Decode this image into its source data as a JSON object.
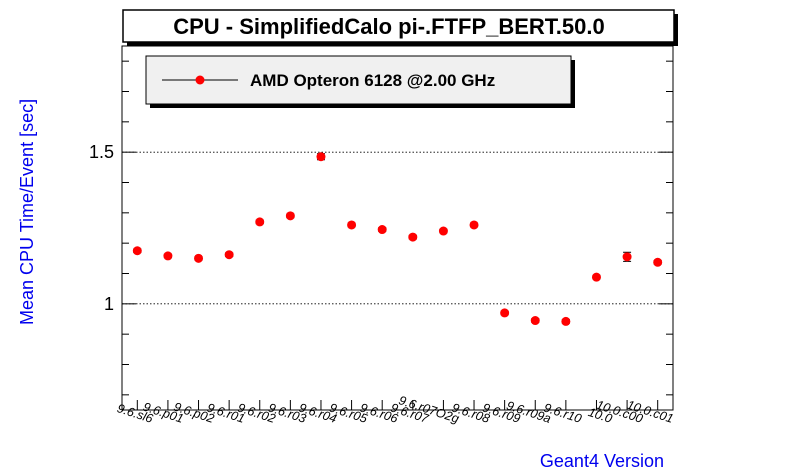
{
  "chart_data": {
    "type": "scatter",
    "title": "CPU - SimplifiedCalo pi-.FTFP_BERT.50.0",
    "xlabel": "Geant4 Version",
    "ylabel": "Mean CPU Time/Event [sec]",
    "ylim": [
      0.65,
      1.85
    ],
    "yticks": [
      {
        "value": 1,
        "label": "1"
      },
      {
        "value": 1.5,
        "label": "1.5"
      }
    ],
    "grid": "horizontal dotted at major ticks",
    "legend_position": "top-left",
    "categories": [
      "9.6.sl6",
      "9.6.p01",
      "9.6.p02",
      "9.6.r01",
      "9.6.r02",
      "9.6.r03",
      "9.6.r04",
      "9.6.r05",
      "9.6.r06",
      "9.6.r07",
      "9.6.r07O2g",
      "9.6.r08",
      "9.6.r09",
      "9.6.r09a",
      "9.6.r10",
      "10.0",
      "10.0.c00",
      "10.0.c01"
    ],
    "series": [
      {
        "name": "AMD Opteron 6128 @2.00 GHz",
        "color": "#ff0000",
        "values": [
          1.175,
          1.158,
          1.15,
          1.162,
          1.27,
          1.29,
          1.485,
          1.26,
          1.245,
          1.22,
          1.24,
          1.26,
          0.97,
          0.945,
          0.942,
          1.088,
          1.155,
          1.137
        ],
        "errors": [
          0.006,
          0.006,
          0.006,
          0.006,
          0.006,
          0.006,
          0.01,
          0.006,
          0.006,
          0.006,
          0.006,
          0.006,
          0.006,
          0.006,
          0.006,
          0.006,
          0.015,
          0.006
        ]
      }
    ]
  }
}
